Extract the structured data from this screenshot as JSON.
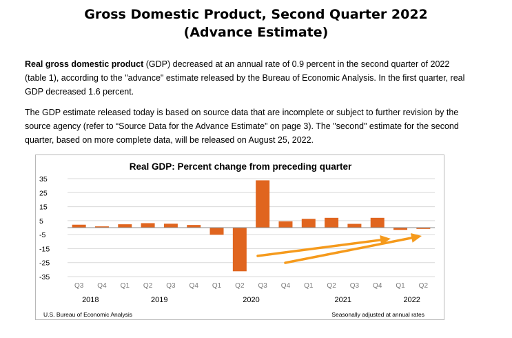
{
  "document": {
    "title_line1": "Gross Domestic Product, Second Quarter 2022",
    "title_line2": "(Advance Estimate)",
    "p1_bold": "Real gross domestic product",
    "p1_rest": " (GDP) decreased at an annual rate of 0.9 percent in the second quarter of 2022 (table 1), according to the \"advance\" estimate released by the Bureau of Economic Analysis. In the first quarter, real GDP decreased 1.6 percent.",
    "p2": "The GDP estimate released today is based on source data that are incomplete or subject to further revision by the source agency (refer to “Source Data for the Advance Estimate” on page 3). The \"second\" estimate for the second quarter, based on more complete data, will be released on August 25, 2022."
  },
  "chart_data": {
    "type": "bar",
    "title": "Real GDP:  Percent change from preceding quarter",
    "categories": [
      "Q3",
      "Q4",
      "Q1",
      "Q2",
      "Q3",
      "Q4",
      "Q1",
      "Q2",
      "Q3",
      "Q4",
      "Q1",
      "Q2",
      "Q3",
      "Q4",
      "Q1",
      "Q2"
    ],
    "years": [
      {
        "label": "2018",
        "start": 0,
        "end": 1
      },
      {
        "label": "2019",
        "start": 2,
        "end": 5
      },
      {
        "label": "2020",
        "start": 6,
        "end": 9
      },
      {
        "label": "2021",
        "start": 10,
        "end": 13
      },
      {
        "label": "2022",
        "start": 14,
        "end": 15
      }
    ],
    "values": [
      2.1,
      0.9,
      2.4,
      3.2,
      2.8,
      1.9,
      -5.1,
      -31.2,
      33.8,
      4.5,
      6.3,
      7.0,
      2.7,
      7.0,
      -1.6,
      -0.9
    ],
    "yticks": [
      35,
      25,
      15,
      5,
      -5,
      -15,
      -25,
      -35
    ],
    "ylim": [
      -35,
      35
    ],
    "grid": true,
    "bar_color": "#e0651f",
    "arrow_color": "#f59a1c",
    "source_note": "U.S. Bureau of Economic Analysis",
    "rates_note": "Seasonally adjusted at annual rates"
  }
}
